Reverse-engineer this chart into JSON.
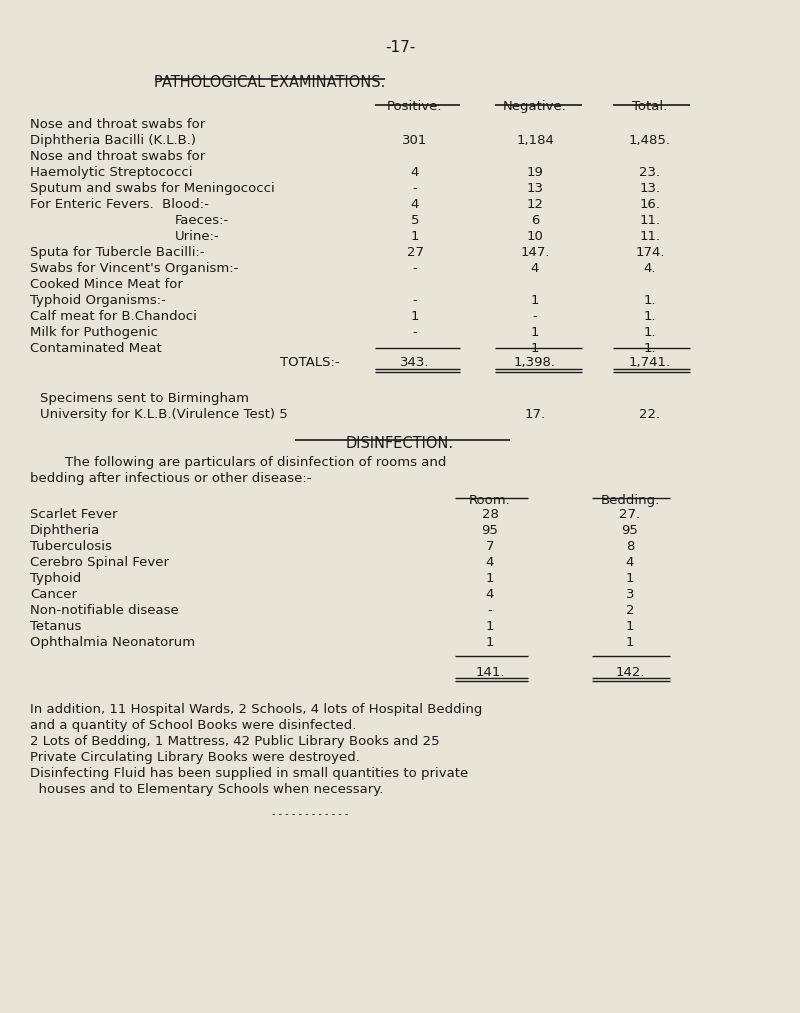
{
  "page_number": "-17-",
  "bg_color": "#e8e4d8",
  "text_color": "#1a1a1a",
  "section1_title": "PATHOLOGICAL EXAMINATIONS.",
  "col_headers": [
    "Positive.",
    "Negative.",
    "Total."
  ],
  "totals_label": "TOTALS:-",
  "totals": [
    "343.",
    "1,398.",
    "1,741."
  ],
  "specimens_line1": "Specimens sent to Birmingham",
  "specimens_line2": "University for K.L.B.(Virulence Test) 5",
  "specimens_neg": "17.",
  "specimens_tot": "22.",
  "section2_title": "DISINFECTION.",
  "dis_intro1": "The following are particulars of disinfection of rooms and",
  "dis_intro2": "bedding after infectious or other disease:-",
  "dis_col_headers": [
    "Room.",
    "Bedding."
  ],
  "dis_rows": [
    {
      "label": "Scarlet Fever",
      "room": "28",
      "bedding": "27."
    },
    {
      "label": "Diphtheria",
      "room": "95",
      "bedding": "95"
    },
    {
      "label": "Tuberculosis",
      "room": "7",
      "bedding": "8"
    },
    {
      "label": "Cerebro Spinal Fever",
      "room": "4",
      "bedding": "4"
    },
    {
      "label": "Typhoid",
      "room": "1",
      "bedding": "1"
    },
    {
      "label": "Cancer",
      "room": "4",
      "bedding": "3"
    },
    {
      "label": "Non-notifiable disease",
      "room": "-",
      "bedding": "2"
    },
    {
      "label": "Tetanus",
      "room": "1",
      "bedding": "1"
    },
    {
      "label": "Ophthalmia Neonatorum",
      "room": "1",
      "bedding": "1"
    }
  ],
  "dis_totals": [
    "141.",
    "142."
  ],
  "footer_lines": [
    "In addition, 11 Hospital Wards, 2 Schools, 4 lots of Hospital Bedding",
    "and a quantity of School Books were disinfected.",
    "2 Lots of Bedding, 1 Mattress, 42 Public Library Books and 25",
    "Private Circulating Library Books were destroyed.",
    "Disinfecting Fluid has been supplied in small quantities to private",
    "  houses and to Elementary Schools when necessary."
  ]
}
